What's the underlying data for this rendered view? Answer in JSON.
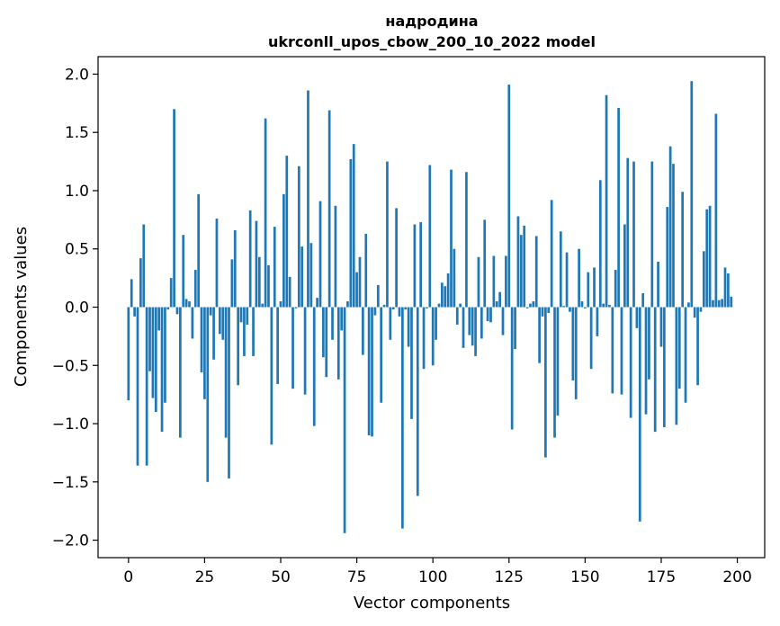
{
  "chart_data": {
    "type": "bar",
    "title": "надродина",
    "subtitle": "ukrconll_upos_cbow_200_10_2022 model",
    "xlabel": "Vector components",
    "ylabel": "Components values",
    "xlim": [
      -10,
      209
    ],
    "ylim": [
      -2.15,
      2.15
    ],
    "xticks": [
      0,
      25,
      50,
      75,
      100,
      125,
      150,
      175,
      200
    ],
    "yticks": [
      -2.0,
      -1.5,
      -1.0,
      -0.5,
      0.0,
      0.5,
      1.0,
      1.5,
      2.0
    ],
    "ytick_labels": [
      "−2.0",
      "−1.5",
      "−1.0",
      "−0.5",
      "0.0",
      "0.5",
      "1.0",
      "1.5",
      "2.0"
    ],
    "bar_color": "#1f77b4",
    "grid": false,
    "values": [
      -0.8,
      0.24,
      -0.08,
      -1.36,
      0.42,
      0.71,
      -1.36,
      -0.55,
      -0.78,
      -0.9,
      -0.2,
      -1.07,
      -0.82,
      -0.02,
      0.25,
      1.7,
      -0.06,
      -1.12,
      0.62,
      0.07,
      0.05,
      -0.27,
      0.32,
      0.97,
      -0.56,
      -0.79,
      -1.5,
      -0.07,
      -0.45,
      0.76,
      -0.23,
      -0.28,
      -1.12,
      -1.47,
      0.41,
      0.66,
      -0.67,
      -0.13,
      -0.42,
      -0.15,
      0.83,
      -0.42,
      0.74,
      0.43,
      0.03,
      1.62,
      0.36,
      -1.18,
      0.69,
      -0.66,
      0.05,
      0.97,
      1.3,
      0.26,
      -0.7,
      -0.01,
      1.21,
      0.52,
      -0.75,
      1.86,
      0.55,
      -1.02,
      0.08,
      0.91,
      -0.43,
      -0.6,
      1.69,
      -0.28,
      0.87,
      -0.62,
      -0.2,
      -1.94,
      0.05,
      1.27,
      1.4,
      0.3,
      0.43,
      -0.41,
      0.63,
      -1.1,
      -1.11,
      -0.07,
      0.19,
      -0.82,
      0.02,
      1.25,
      -0.28,
      -0.02,
      0.85,
      -0.08,
      -1.9,
      -0.02,
      -0.34,
      -0.96,
      0.71,
      -1.62,
      0.73,
      -0.53,
      -0.01,
      1.22,
      -0.5,
      -0.28,
      0.03,
      0.21,
      0.18,
      0.29,
      1.18,
      0.5,
      -0.15,
      0.03,
      -0.35,
      1.16,
      -0.24,
      -0.33,
      -0.42,
      0.43,
      -0.27,
      0.75,
      -0.12,
      -0.13,
      0.44,
      0.05,
      0.13,
      -0.24,
      0.44,
      1.91,
      -1.05,
      -0.36,
      0.78,
      0.62,
      0.7,
      -0.01,
      0.03,
      0.05,
      0.61,
      -0.48,
      -0.08,
      -1.29,
      -0.05,
      0.92,
      -1.12,
      -0.93,
      0.65,
      0.01,
      0.47,
      -0.04,
      -0.63,
      -0.79,
      0.5,
      0.05,
      -0.01,
      0.3,
      -0.53,
      0.34,
      -0.25,
      1.09,
      0.03,
      1.82,
      0.02,
      -0.74,
      0.32,
      1.71,
      -0.75,
      0.71,
      1.28,
      -0.95,
      1.25,
      -0.18,
      -1.84,
      0.12,
      -0.92,
      -0.62,
      1.25,
      -1.07,
      0.39,
      -0.34,
      -1.03,
      0.86,
      1.38,
      1.23,
      -1.01,
      -0.7,
      0.99,
      -0.82,
      0.04,
      1.94,
      -0.09,
      -0.67,
      -0.04,
      0.48,
      0.84,
      0.87,
      0.06,
      1.66,
      0.06,
      0.07,
      0.34,
      0.29,
      0.09
    ]
  }
}
